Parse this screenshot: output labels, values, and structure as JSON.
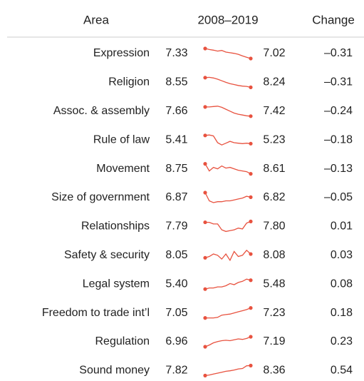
{
  "header": {
    "area": "Area",
    "period": "2008–2019",
    "change": "Change"
  },
  "line_color": "#e8523f",
  "rows": [
    {
      "area": "Expression",
      "start": "7.33",
      "end": "7.02",
      "change": "–0.31",
      "trend": [
        7.33,
        7.3,
        7.28,
        7.25,
        7.27,
        7.22,
        7.2,
        7.18,
        7.15,
        7.1,
        7.06,
        7.02
      ]
    },
    {
      "area": "Religion",
      "start": "8.55",
      "end": "8.24",
      "change": "–0.31",
      "trend": [
        8.55,
        8.56,
        8.54,
        8.5,
        8.45,
        8.4,
        8.36,
        8.33,
        8.3,
        8.28,
        8.27,
        8.24
      ]
    },
    {
      "area": "Assoc. & assembly",
      "start": "7.66",
      "end": "7.42",
      "change": "–0.24",
      "trend": [
        7.66,
        7.66,
        7.67,
        7.68,
        7.65,
        7.6,
        7.55,
        7.5,
        7.47,
        7.45,
        7.43,
        7.42
      ]
    },
    {
      "area": "Rule of law",
      "start": "5.41",
      "end": "5.23",
      "change": "–0.18",
      "trend": [
        5.41,
        5.42,
        5.4,
        5.25,
        5.2,
        5.24,
        5.28,
        5.25,
        5.24,
        5.23,
        5.24,
        5.23
      ]
    },
    {
      "area": "Movement",
      "start": "8.75",
      "end": "8.61",
      "change": "–0.13",
      "trend": [
        8.75,
        8.65,
        8.7,
        8.68,
        8.72,
        8.69,
        8.7,
        8.68,
        8.66,
        8.65,
        8.64,
        8.61
      ]
    },
    {
      "area": "Size of government",
      "start": "6.87",
      "end": "6.82",
      "change": "–0.05",
      "trend": [
        6.87,
        6.78,
        6.76,
        6.77,
        6.77,
        6.78,
        6.78,
        6.79,
        6.8,
        6.81,
        6.83,
        6.82
      ]
    },
    {
      "area": "Relationships",
      "start": "7.79",
      "end": "7.80",
      "change": "0.01",
      "trend": [
        7.79,
        7.79,
        7.77,
        7.77,
        7.7,
        7.68,
        7.69,
        7.7,
        7.72,
        7.71,
        7.78,
        7.8
      ]
    },
    {
      "area": "Safety & security",
      "start": "8.05",
      "end": "8.08",
      "change": "0.03",
      "trend": [
        8.05,
        8.06,
        8.08,
        8.07,
        8.04,
        8.08,
        8.03,
        8.1,
        8.06,
        8.07,
        8.11,
        8.08
      ]
    },
    {
      "area": "Legal system",
      "start": "5.40",
      "end": "5.48",
      "change": "0.08",
      "trend": [
        5.4,
        5.41,
        5.41,
        5.42,
        5.42,
        5.43,
        5.45,
        5.44,
        5.46,
        5.47,
        5.49,
        5.48
      ]
    },
    {
      "area": "Freedom to trade int’l",
      "start": "7.05",
      "end": "7.23",
      "change": "0.18",
      "trend": [
        7.05,
        7.05,
        7.05,
        7.06,
        7.1,
        7.11,
        7.12,
        7.14,
        7.16,
        7.18,
        7.2,
        7.23
      ]
    },
    {
      "area": "Regulation",
      "start": "6.96",
      "end": "7.19",
      "change": "0.23",
      "trend": [
        6.96,
        7.0,
        7.05,
        7.08,
        7.1,
        7.11,
        7.1,
        7.12,
        7.14,
        7.13,
        7.15,
        7.19
      ]
    },
    {
      "area": "Sound money",
      "start": "7.82",
      "end": "8.36",
      "change": "0.54",
      "trend": [
        7.82,
        7.85,
        7.9,
        7.95,
        8.0,
        8.05,
        8.08,
        8.12,
        8.18,
        8.2,
        8.35,
        8.36
      ]
    }
  ]
}
